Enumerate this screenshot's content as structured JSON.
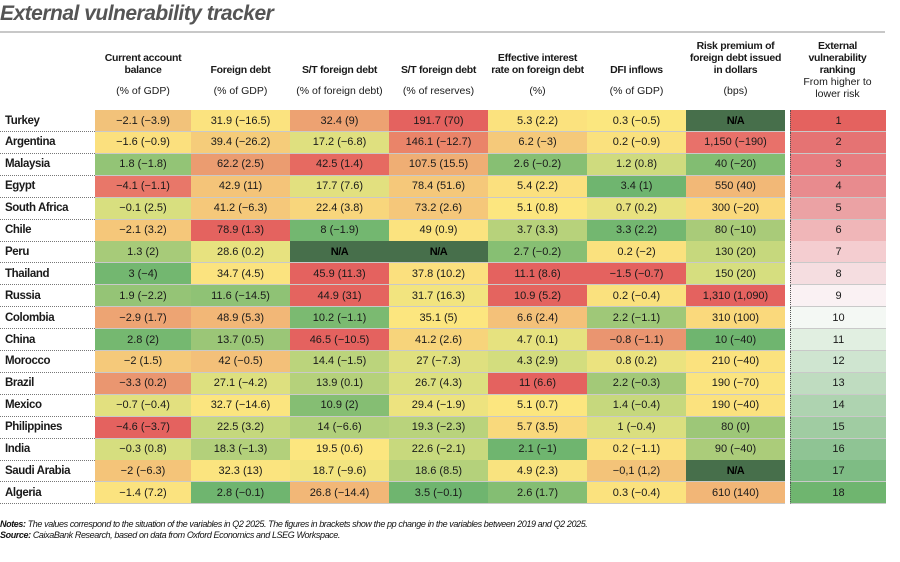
{
  "title": "External vulnerability tracker",
  "headers": [
    {
      "label": "Current account balance",
      "unit": "(% of GDP)"
    },
    {
      "label": "Foreign debt",
      "unit": "(% of GDP)"
    },
    {
      "label": "S/T foreign debt",
      "unit": "(% of foreign debt)"
    },
    {
      "label": "S/T foreign debt",
      "unit": "(% of reserves)"
    },
    {
      "label": "Effective interest rate on foreign debt",
      "unit": "(%)"
    },
    {
      "label": "DFI inflows",
      "unit": "(% of GDP)"
    },
    {
      "label": "Risk premium of foreign debt issued in dollars",
      "unit": "(bps)"
    },
    {
      "label": "External vulnerability ranking",
      "unit": "From higher to lower risk"
    }
  ],
  "notes": {
    "notes_label": "Notes:",
    "notes_text": " The values correspond to the situation of the variables in Q2 2025. The figures in brackets show the pp change in the variables between 2019 and Q2 2025.",
    "source_label": "Source:",
    "source_text": " CaixaBank Research, based on data from Oxford Economics and LSEG Workspace."
  },
  "colors": {
    "red": "#e4625f",
    "orange_red": "#ea8a6a",
    "orange": "#f2b877",
    "light_orange": "#f5c97a",
    "yellow": "#fbe27e",
    "yellow_green": "#d8df7f",
    "light_green": "#a7cb79",
    "green": "#6fb56f",
    "na": "#476f4b"
  },
  "chart_data": {
    "type": "table",
    "title": "External vulnerability tracker",
    "columns": [
      "Country",
      "Current account balance (% of GDP)",
      "Foreign debt (% of GDP)",
      "S/T foreign debt (% of foreign debt)",
      "S/T foreign debt (% of reserves)",
      "Effective interest rate on foreign debt (%)",
      "DFI inflows (% of GDP)",
      "Risk premium of foreign debt issued in dollars (bps)",
      "External vulnerability ranking"
    ],
    "rows": [
      {
        "country": "Turkey",
        "values": [
          "−2.1 (−3.9)",
          "31.9 (−16.5)",
          "32.4 (9)",
          "191.7 (70)",
          "5.3 (2.2)",
          "0.3 (−0.5)",
          "N/A"
        ],
        "rank": "1",
        "colors": [
          "#f2c27a",
          "#fbe37f",
          "#eda272",
          "#e4625f",
          "#fbe27e",
          "#fbe77f",
          "na"
        ],
        "rank_color": "#e4625f"
      },
      {
        "country": "Argentina",
        "values": [
          "−1.6 (−0.9)",
          "39.4 (−26.2)",
          "17.2 (−6.8)",
          "146.1 (−12.7)",
          "6.2 (−3)",
          "0.2 (−0.9)",
          "1,150 (−190)"
        ],
        "rank": "2",
        "colors": [
          "#fbe07e",
          "#f5cc7a",
          "#dfe07f",
          "#ea8469",
          "#f5c97a",
          "#fae17e",
          "#e8716a"
        ],
        "rank_color": "#e57373"
      },
      {
        "country": "Malaysia",
        "values": [
          "1.8 (−1.8)",
          "62.2 (2.5)",
          "42.5 (1.4)",
          "107.5 (15.5)",
          "2.6 (−0.2)",
          "1.2 (0.8)",
          "40 (−20)"
        ],
        "rank": "3",
        "colors": [
          "#93c476",
          "#eb9c70",
          "#e66a61",
          "#efae74",
          "#87bf73",
          "#cfdb7e",
          "#82bd72"
        ],
        "rank_color": "#e77d80"
      },
      {
        "country": "Egypt",
        "values": [
          "−4.1 (−1.1)",
          "42.9 (11)",
          "17.7 (7.6)",
          "78.4 (51.6)",
          "5.4 (2.2)",
          "3.4 (1)",
          "550 (40)"
        ],
        "rank": "4",
        "colors": [
          "#e87769",
          "#f4c479",
          "#e2e07f",
          "#f5c87a",
          "#fbe07e",
          "#6fb56f",
          "#f2b877"
        ],
        "rank_color": "#e88b8e"
      },
      {
        "country": "South Africa",
        "values": [
          "−0.1 (2.5)",
          "41.2 (−6.3)",
          "22.4 (3.8)",
          "73.2 (2.6)",
          "5.1 (0.8)",
          "0.7 (0.2)",
          "300 (−20)"
        ],
        "rank": "5",
        "colors": [
          "#d8df7f",
          "#f5c87a",
          "#f8d67c",
          "#f5c77a",
          "#fce67f",
          "#e8e27f",
          "#fad97c"
        ],
        "rank_color": "#eba2a4"
      },
      {
        "country": "Chile",
        "values": [
          "−2.1 (3.2)",
          "78.9 (1.3)",
          "8 (−1.9)",
          "49 (0.9)",
          "3.7 (3.3)",
          "3.3 (2.2)",
          "80 (−10)"
        ],
        "rank": "6",
        "colors": [
          "#f5c77a",
          "#e4635f",
          "#73b770",
          "#fbe37f",
          "#b7d27b",
          "#73b770",
          "#a9cb79"
        ],
        "rank_color": "#f0b6b8"
      },
      {
        "country": "Peru",
        "values": [
          "1.3 (2)",
          "28.6 (0.2)",
          "N/A",
          "N/A",
          "2.7 (−0.2)",
          "0.2 (−2)",
          "130 (20)"
        ],
        "rank": "7",
        "colors": [
          "#a7cb79",
          "#e7e27f",
          "na",
          "na",
          "#87bf73",
          "#fae17e",
          "#c6d87d"
        ],
        "rank_color": "#f4cdd0"
      },
      {
        "country": "Thailand",
        "values": [
          "3 (−4)",
          "34.7 (4.5)",
          "45.9 (11.3)",
          "37.8 (10.2)",
          "11.1 (8.6)",
          "−1.5 (−0.7)",
          "150 (20)"
        ],
        "rank": "8",
        "colors": [
          "#73b770",
          "#fbe37f",
          "#e4625f",
          "#fbe07e",
          "#e4625f",
          "#e4625f",
          "#d6de7f"
        ],
        "rank_color": "#f5dde0"
      },
      {
        "country": "Russia",
        "values": [
          "1.9 (−2.2)",
          "11.6 (−14.5)",
          "44.9 (31)",
          "31.7 (16.3)",
          "10.9 (5.2)",
          "0.2 (−0.4)",
          "1,310 (1,090)"
        ],
        "rank": "9",
        "colors": [
          "#95c476",
          "#8fc275",
          "#e4645f",
          "#f2e47f",
          "#e4645f",
          "#fae17e",
          "#e4625f"
        ],
        "rank_color": "#faf1f3"
      },
      {
        "country": "Colombia",
        "values": [
          "−2.9 (1.7)",
          "48.9 (5.3)",
          "10.2 (−1.1)",
          "35.1 (5)",
          "6.6 (2.4)",
          "2.2 (−1.1)",
          "310 (100)"
        ],
        "rank": "10",
        "colors": [
          "#eda473",
          "#f2b777",
          "#7bba71",
          "#fce67f",
          "#f4c179",
          "#9fc878",
          "#fad97c"
        ],
        "rank_color": "#f4f8f4"
      },
      {
        "country": "China",
        "values": [
          "2.8 (2)",
          "13.7 (0.5)",
          "46.5 (−10.5)",
          "41.2 (2.6)",
          "4.7 (0.1)",
          "−0.8 (−1.1)",
          "10 (−40)"
        ],
        "rank": "11",
        "colors": [
          "#75b870",
          "#9bc677",
          "#e4625f",
          "#f7d47b",
          "#e6e27f",
          "#ea9570",
          "#6fb56f"
        ],
        "rank_color": "#e1efe1"
      },
      {
        "country": "Morocco",
        "values": [
          "−2 (1.5)",
          "42 (−0.5)",
          "14.4 (−1.5)",
          "27 (−7.3)",
          "4.3 (2.9)",
          "0.8 (0.2)",
          "210 (−40)"
        ],
        "rank": "12",
        "colors": [
          "#f5c97a",
          "#f3c079",
          "#bbd47c",
          "#dfe07f",
          "#d3dd7e",
          "#ebe37f",
          "#fbe27e"
        ],
        "rank_color": "#cfe5d0"
      },
      {
        "country": "Brazil",
        "values": [
          "−3.3 (0.2)",
          "27.1 (−4.2)",
          "13.9 (0.1)",
          "26.7 (4.3)",
          "11 (6.6)",
          "2.2 (−0.3)",
          "190 (−70)"
        ],
        "rank": "13",
        "colors": [
          "#ea9670",
          "#dde07f",
          "#b5d17b",
          "#dce07f",
          "#e4625f",
          "#a3c978",
          "#fbe47f"
        ],
        "rank_color": "#bfdcc0"
      },
      {
        "country": "Mexico",
        "values": [
          "−0.7 (−0.4)",
          "32.7 (−14.6)",
          "10.9 (2)",
          "29.4 (−1.9)",
          "5.1 (0.7)",
          "1.4 (−0.4)",
          "190 (−40)"
        ],
        "rank": "14",
        "colors": [
          "#e2e07f",
          "#fbe57f",
          "#85be73",
          "#ede37f",
          "#fce67f",
          "#c6d87d",
          "#fbe27e"
        ],
        "rank_color": "#aed3b0"
      },
      {
        "country": "Philippines",
        "values": [
          "−4.6 (−3.7)",
          "22.5 (3.2)",
          "14 (−6.6)",
          "19.3 (−2.3)",
          "5.7 (3.5)",
          "1 (−0.4)",
          "80 (0)"
        ],
        "rank": "15",
        "colors": [
          "#e4625f",
          "#c5d87d",
          "#b1d07b",
          "#b9d37c",
          "#f9d97c",
          "#dadf7f",
          "#9dc778"
        ],
        "rank_color": "#a0cca2"
      },
      {
        "country": "India",
        "values": [
          "−0.3 (0.8)",
          "18.3 (−1.3)",
          "19.5 (0.6)",
          "22.6 (−2.1)",
          "2.1 (−1)",
          "0.2 (−1.1)",
          "90 (−40)"
        ],
        "rank": "16",
        "colors": [
          "#d6de7f",
          "#b3d07b",
          "#fce67f",
          "#c8d97d",
          "#6fb56f",
          "#fae17e",
          "#abcc7a"
        ],
        "rank_color": "#8fc494"
      },
      {
        "country": "Saudi Arabia",
        "values": [
          "−2 (−6.3)",
          "32.3 (13)",
          "18.7 (−9.6)",
          "18.6 (8.5)",
          "4.9 (2.3)",
          "−0,1 (1,2)",
          "N/A"
        ],
        "rank": "17",
        "colors": [
          "#f4c479",
          "#fbe47f",
          "#f2e47f",
          "#b4d17b",
          "#f9e37f",
          "#f3c379",
          "na"
        ],
        "rank_color": "#7ebc84"
      },
      {
        "country": "Algeria",
        "values": [
          "−1.4 (7.2)",
          "2.8 (−0.1)",
          "26.8 (−14.4)",
          "3.5 (−0.1)",
          "2.6 (1.7)",
          "0.3 (−0.4)",
          "610 (140)"
        ],
        "rank": "18",
        "colors": [
          "#fbe37f",
          "#6fb56f",
          "#f2b777",
          "#6fb56f",
          "#84be73",
          "#fbe27e",
          "#f2b677"
        ],
        "rank_color": "#6fb56f"
      }
    ]
  }
}
